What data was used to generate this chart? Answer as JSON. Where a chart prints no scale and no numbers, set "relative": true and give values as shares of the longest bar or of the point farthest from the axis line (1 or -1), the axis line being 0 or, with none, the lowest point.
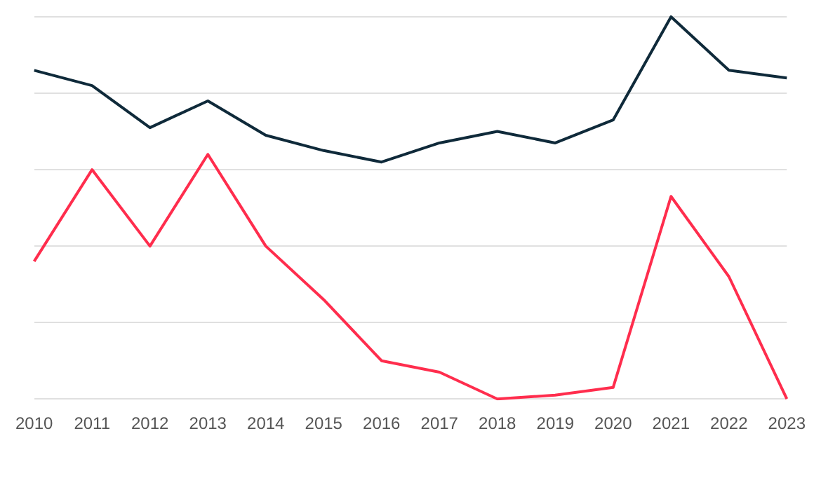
{
  "chart_data": {
    "type": "line",
    "relative": true,
    "categories": [
      "2010",
      "2011",
      "2012",
      "2013",
      "2014",
      "2015",
      "2016",
      "2017",
      "2018",
      "2019",
      "2020",
      "2021",
      "2022",
      "2023"
    ],
    "series": [
      {
        "color": "#0f2a3a",
        "values": [
          0.86,
          0.82,
          0.71,
          0.78,
          0.69,
          0.65,
          0.62,
          0.67,
          0.7,
          0.67,
          0.73,
          1,
          0.86,
          0.84
        ]
      },
      {
        "color": "#ff2d4d",
        "values": [
          0.36,
          0.6,
          0.4,
          0.64,
          0.4,
          0.26,
          0.1,
          0.07,
          0,
          0.01,
          0.03,
          0.53,
          0.32,
          0
        ]
      }
    ],
    "grid": "y",
    "legend": false,
    "marker": "none",
    "line_style": "solid",
    "tick_labels": "x"
  }
}
